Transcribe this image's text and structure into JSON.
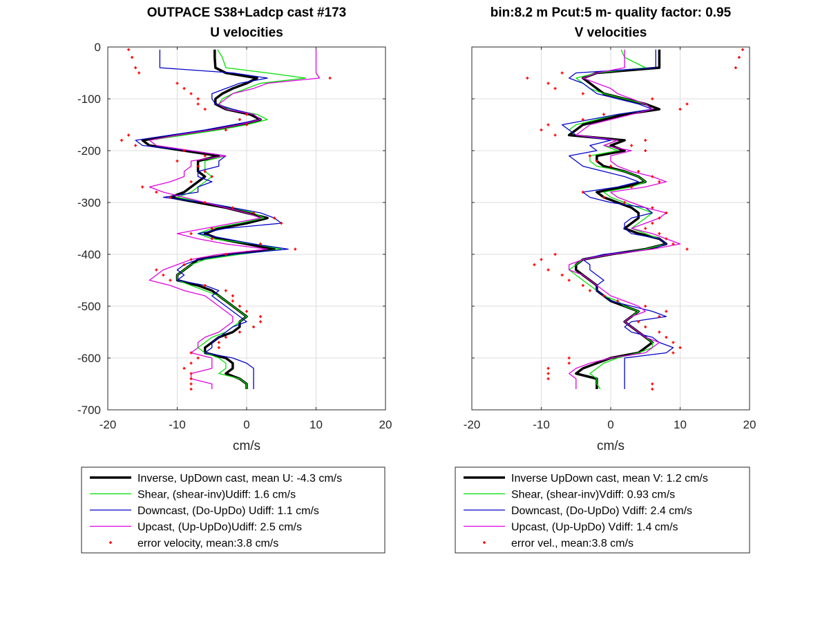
{
  "chart_data": [
    {
      "type": "line",
      "title": "OUTPACE S38+Ladcp cast #173",
      "subtitle": "U velocities",
      "xlabel": "cm/s",
      "ylabel": "",
      "xlim": [
        -20,
        20
      ],
      "ylim": [
        -700,
        0
      ],
      "xticks": [
        "-20",
        "-10",
        "0",
        "10",
        "20"
      ],
      "yticks": [
        "0",
        "-100",
        "-200",
        "-300",
        "-400",
        "-500",
        "-600",
        "-700"
      ],
      "grid": true,
      "legend_position": "below",
      "depth": [
        -5,
        -20,
        -40,
        -50,
        -60,
        -70,
        -80,
        -90,
        -100,
        -110,
        -120,
        -130,
        -140,
        -150,
        -160,
        -170,
        -180,
        -190,
        -200,
        -210,
        -220,
        -230,
        -240,
        -250,
        -260,
        -270,
        -280,
        -290,
        -300,
        -310,
        -320,
        -330,
        -340,
        -350,
        -360,
        -370,
        -380,
        -390,
        -400,
        -410,
        -420,
        -430,
        -440,
        -450,
        -460,
        -470,
        -480,
        -490,
        -500,
        -510,
        -520,
        -530,
        -540,
        -550,
        -560,
        -570,
        -580,
        -590,
        -600,
        -610,
        -620,
        -630,
        -640,
        -650,
        -660
      ],
      "series": [
        {
          "name": "Inverse, UpDown cast, mean U:  -4.3 cm/s",
          "color": "#000000",
          "width": 3.5,
          "values": [
            -4.6,
            -4.6,
            -4.5,
            -3,
            1.5,
            0,
            -2,
            -3.5,
            -4.5,
            -4.5,
            -3,
            0.5,
            2,
            -1,
            -5,
            -10,
            -15,
            -14,
            -9,
            -4,
            -7,
            -7,
            -7,
            -6,
            -7,
            -8,
            -9,
            -11,
            -7,
            -3,
            0,
            3,
            0,
            -4,
            -6,
            -4,
            0,
            4,
            -2,
            -7,
            -8,
            -9,
            -10,
            -10,
            -7,
            -5,
            -4,
            -3,
            -2,
            -1,
            0,
            -1,
            -1,
            -2,
            -4,
            -5,
            -6,
            -6,
            -3,
            -2,
            -2,
            -3,
            -1,
            0,
            0
          ]
        },
        {
          "name": "Shear, (shear-inv)Udiff:  1.6 cm/s",
          "color": "#00e000",
          "width": 1.3,
          "values": [
            -4.2,
            -3.5,
            -3,
            3,
            8.5,
            2,
            0,
            -2,
            -3.5,
            -4,
            -2.5,
            1.5,
            3,
            0,
            -4,
            -9,
            -14,
            -13,
            -8,
            -3,
            -6,
            -6,
            -6,
            -5,
            -6,
            -7,
            -8,
            -10,
            -6,
            -2,
            1,
            2.5,
            -1,
            -5,
            -7,
            -5,
            1,
            5,
            -1,
            -6,
            -8,
            -9,
            -10,
            -10,
            -8,
            -6,
            -4,
            -3,
            -2,
            -1,
            0,
            -1,
            -2,
            -3,
            -5,
            -6,
            -7,
            -6,
            -4,
            -3,
            -3,
            -4,
            -1,
            0,
            0
          ]
        },
        {
          "name": "Downcast, (Do-UpDo) Udiff:  1.1 cm/s",
          "color": "#0000c8",
          "width": 1.3,
          "values": [
            -12.5,
            -12.5,
            -12.5,
            -2,
            3,
            -1,
            -3,
            -5,
            -5,
            -4.5,
            -2,
            1,
            2,
            -2,
            -6,
            -11,
            -16,
            -15,
            -8,
            -3,
            -4,
            -4,
            -7,
            -7,
            -5,
            -7,
            -7,
            -12,
            -6,
            -2,
            2,
            4,
            5,
            -3,
            -7,
            -3,
            1,
            6,
            -2,
            -7,
            -9,
            -10,
            -9,
            -10,
            -6,
            -4,
            -5,
            -4,
            -3,
            -2,
            -1,
            0,
            -2,
            -3,
            -4,
            -5,
            -5,
            -6,
            -2,
            0,
            1,
            1,
            1,
            1,
            1
          ]
        },
        {
          "name": "Upcast, (Up-UpDo)Udiff:  2.5 cm/s",
          "color": "#e000e0",
          "width": 1.3,
          "values": [
            10,
            10,
            10,
            10,
            10.5,
            3,
            1,
            -2,
            -3,
            -4,
            -3,
            1,
            2,
            -1,
            -5,
            -10,
            -14,
            -13,
            -8,
            -3,
            -8,
            -8,
            -9,
            -9,
            -11,
            -14,
            -12,
            -9,
            -6,
            -3,
            0,
            2,
            -2,
            -6,
            -10,
            -7,
            -3,
            3,
            -4,
            -8,
            -10,
            -12,
            -13,
            -14,
            -11,
            -9,
            -6,
            -5,
            -4,
            -3,
            -2,
            -2,
            -3,
            -4,
            -6,
            -7,
            -7,
            -8,
            -5,
            -5,
            -5,
            -8,
            -8,
            -5,
            -5
          ]
        },
        {
          "name": "error velocity, mean:3.8 cm/s",
          "color": "#ff0000",
          "width": 0,
          "marker": true,
          "values": [
            -17,
            -16.5,
            -16,
            -15.5,
            12,
            -10,
            -9,
            -8,
            -7,
            -7,
            -6,
            0,
            -1,
            0,
            -3,
            -17,
            -18,
            -16,
            -9,
            -6,
            -10,
            -7,
            -6,
            -5,
            -8,
            -15,
            -13,
            -11,
            -6,
            -2,
            1,
            4,
            5,
            -5,
            -8,
            -5,
            2,
            7,
            -3,
            -8,
            -9,
            -13,
            -12,
            -11,
            -6,
            -3,
            -2,
            -2,
            -1,
            0,
            2,
            2,
            1,
            -1,
            -3,
            -4,
            -4,
            -8,
            -7,
            -8,
            -9,
            -8,
            -8,
            -8,
            -8
          ]
        }
      ]
    },
    {
      "type": "line",
      "title": "bin:8.2 m  Pcut:5 m- quality factor:  0.95",
      "subtitle": "V velocities",
      "xlabel": "cm/s",
      "ylabel": "",
      "xlim": [
        -20,
        20
      ],
      "ylim": [
        -700,
        0
      ],
      "xticks": [
        "-20",
        "-10",
        "0",
        "10",
        "20"
      ],
      "yticks": [],
      "grid": true,
      "legend_position": "below",
      "depth": [
        -5,
        -20,
        -40,
        -50,
        -60,
        -70,
        -80,
        -90,
        -100,
        -110,
        -120,
        -130,
        -140,
        -150,
        -160,
        -170,
        -180,
        -190,
        -200,
        -210,
        -220,
        -230,
        -240,
        -250,
        -260,
        -270,
        -280,
        -290,
        -300,
        -310,
        -320,
        -330,
        -340,
        -350,
        -360,
        -370,
        -380,
        -390,
        -400,
        -410,
        -420,
        -430,
        -440,
        -450,
        -460,
        -470,
        -480,
        -490,
        -500,
        -510,
        -520,
        -530,
        -540,
        -550,
        -560,
        -570,
        -580,
        -590,
        -600,
        -610,
        -620,
        -630,
        -640,
        -650,
        -660
      ],
      "series": [
        {
          "name": "Inverse UpDown cast, mean V:  1.2 cm/s",
          "color": "#000000",
          "width": 3.5,
          "values": [
            7,
            7,
            7,
            -2,
            -4,
            -3,
            -2,
            -1,
            2,
            5,
            7,
            2,
            -1,
            -4,
            -5,
            -6,
            2,
            0,
            2,
            -2,
            -2,
            -1,
            2,
            4,
            5,
            2,
            -2,
            -1,
            1,
            3,
            4,
            4,
            3,
            2,
            4,
            7,
            8,
            5,
            0,
            -4,
            -5,
            -5,
            -4,
            -3,
            -2,
            -2,
            -1,
            0,
            2,
            4,
            3,
            2,
            3,
            4,
            5,
            6,
            5,
            4,
            0,
            -2,
            -4,
            -5,
            -2,
            -2,
            -2
          ]
        },
        {
          "name": "Shear, (shear-inv)Vdiff:  0.93 cm/s",
          "color": "#00e000",
          "width": 1.3,
          "values": [
            1.5,
            2,
            5,
            -2,
            -5,
            -4,
            -3,
            -1,
            2,
            5,
            6,
            1,
            -2,
            -5,
            -6,
            -5,
            1,
            -1,
            1,
            -3,
            -3,
            -2,
            2,
            4,
            5,
            3,
            -1,
            0,
            2,
            4,
            6,
            5,
            4,
            3,
            5,
            7,
            8,
            5,
            0,
            -4,
            -5,
            -6,
            -5,
            -4,
            -3,
            -2,
            -1,
            1,
            2,
            4,
            3,
            2,
            3,
            4,
            5,
            6,
            6,
            4,
            1,
            -1,
            -2,
            -3,
            -2,
            -2,
            -1.5
          ]
        },
        {
          "name": "Downcast, (Do-UpDo) Vdiff:  2.4 cm/s",
          "color": "#0000c8",
          "width": 1.3,
          "values": [
            6.5,
            6.5,
            6.5,
            -5,
            -6,
            -4,
            -3,
            -2,
            1,
            4,
            6,
            1,
            -3,
            -7,
            -6,
            -5,
            0,
            -3,
            -2,
            -6,
            -5,
            -4,
            -1,
            2,
            4,
            1,
            -4,
            -3,
            0,
            5,
            6,
            3,
            2,
            2,
            3,
            7,
            8,
            6,
            -1,
            -4,
            -3,
            -3,
            -2,
            -1,
            -2,
            -2,
            -1,
            0,
            3,
            6,
            8,
            3,
            2,
            3,
            6,
            7,
            9,
            8,
            2,
            2,
            2,
            2,
            2,
            2,
            2
          ]
        },
        {
          "name": "Upcast, (Up-UpDo) Vdiff:  1.4 cm/s",
          "color": "#e000e0",
          "width": 1.3,
          "values": [
            2,
            2,
            2,
            -2,
            -4,
            -2,
            0,
            1,
            3,
            5,
            6,
            3,
            0,
            -3,
            -4,
            -5,
            1,
            -1,
            3,
            0,
            0,
            1,
            3,
            6,
            8,
            5,
            0,
            1,
            3,
            5,
            8,
            7,
            5,
            3,
            6,
            8,
            10,
            6,
            0,
            -4,
            -6,
            -6,
            -4,
            -3,
            -2,
            -1,
            0,
            2,
            4,
            5,
            3,
            2,
            3,
            4,
            5,
            7,
            6,
            5,
            0,
            -3,
            -5,
            -6,
            -5,
            -5,
            -5
          ]
        },
        {
          "name": "error vel., mean:3.8 cm/s",
          "color": "#ff0000",
          "width": 0,
          "marker": true,
          "values": [
            19,
            18.5,
            18,
            -7,
            -12,
            -9,
            -8,
            -4,
            6,
            11,
            10,
            -1,
            -4,
            -9,
            -10,
            -8,
            5,
            3,
            5,
            -3,
            -2,
            0,
            4,
            6,
            7,
            3,
            -4,
            -1,
            2,
            6,
            8,
            7,
            6,
            5,
            7,
            8,
            9,
            11,
            -8,
            -10,
            -11,
            -9,
            -7,
            -6,
            -4,
            -3,
            -1,
            1,
            5,
            8,
            7,
            4,
            5,
            7,
            8,
            9,
            10,
            9,
            -6,
            -6,
            -9,
            -9,
            -9,
            6,
            6
          ]
        }
      ]
    }
  ]
}
